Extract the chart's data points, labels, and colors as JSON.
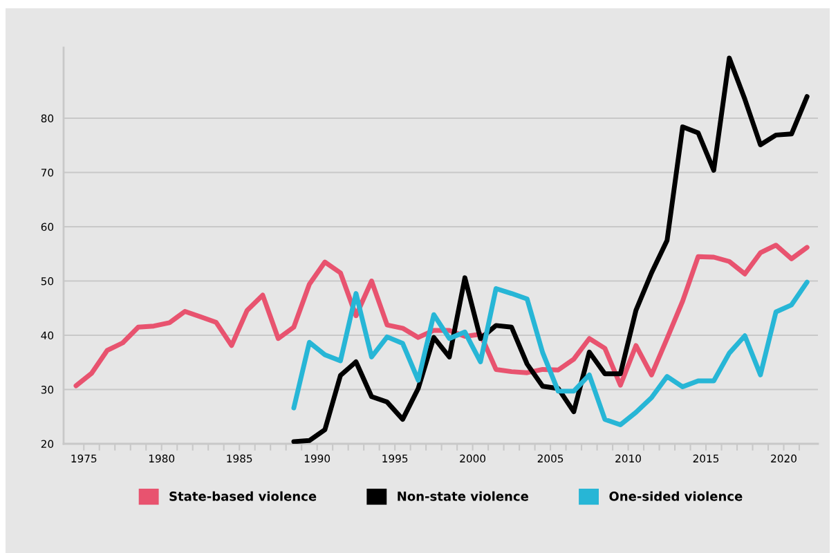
{
  "chart_data": {
    "type": "line",
    "xlim": [
      1973.7,
      2022.2
    ],
    "xticks": [
      {
        "value": 1975,
        "label": "1975"
      },
      {
        "value": 1976,
        "label": null
      },
      {
        "value": 1977,
        "label": null
      },
      {
        "value": 1978,
        "label": null
      },
      {
        "value": 1979,
        "label": null
      },
      {
        "value": 1980,
        "label": "1980"
      },
      {
        "value": 1981,
        "label": null
      },
      {
        "value": 1982,
        "label": null
      },
      {
        "value": 1983,
        "label": null
      },
      {
        "value": 1984,
        "label": null
      },
      {
        "value": 1985,
        "label": "1985"
      },
      {
        "value": 1986,
        "label": null
      },
      {
        "value": 1987,
        "label": null
      },
      {
        "value": 1988,
        "label": null
      },
      {
        "value": 1989,
        "label": null
      },
      {
        "value": 1990,
        "label": "1990"
      },
      {
        "value": 1991,
        "label": null
      },
      {
        "value": 1992,
        "label": null
      },
      {
        "value": 1993,
        "label": null
      },
      {
        "value": 1994,
        "label": null
      },
      {
        "value": 1995,
        "label": "1995"
      },
      {
        "value": 1996,
        "label": null
      },
      {
        "value": 1997,
        "label": null
      },
      {
        "value": 1998,
        "label": null
      },
      {
        "value": 1999,
        "label": null
      },
      {
        "value": 2000,
        "label": "2000"
      },
      {
        "value": 2001,
        "label": null
      },
      {
        "value": 2002,
        "label": null
      },
      {
        "value": 2003,
        "label": null
      },
      {
        "value": 2004,
        "label": null
      },
      {
        "value": 2005,
        "label": "2005"
      },
      {
        "value": 2006,
        "label": null
      },
      {
        "value": 2007,
        "label": null
      },
      {
        "value": 2008,
        "label": null
      },
      {
        "value": 2009,
        "label": null
      },
      {
        "value": 2010,
        "label": "2010"
      },
      {
        "value": 2011,
        "label": null
      },
      {
        "value": 2012,
        "label": null
      },
      {
        "value": 2013,
        "label": null
      },
      {
        "value": 2014,
        "label": null
      },
      {
        "value": 2015,
        "label": "2015"
      },
      {
        "value": 2016,
        "label": null
      },
      {
        "value": 2017,
        "label": null
      },
      {
        "value": 2018,
        "label": null
      },
      {
        "value": 2019,
        "label": null
      },
      {
        "value": 2020,
        "label": "2020"
      },
      {
        "value": 2021,
        "label": null
      }
    ],
    "ylim": [
      20,
      93
    ],
    "yticks": [
      20,
      30,
      40,
      50,
      60,
      70,
      80
    ],
    "grid": "y",
    "legend": "bottom",
    "marker": "none",
    "line_style": "solid",
    "series": [
      {
        "name": "State-based violence",
        "color": "#e8536f",
        "x": [
          1974.5,
          1975.5,
          1976.5,
          1977.5,
          1978.5,
          1979.5,
          1980.5,
          1981.5,
          1982.5,
          1983.5,
          1984.5,
          1985.5,
          1986.5,
          1987.5,
          1988.5,
          1989.5,
          1990.5,
          1991.5,
          1992.5,
          1993.5,
          1994.5,
          1995.5,
          1996.5,
          1997.5,
          1998.5,
          1999.5,
          2000.5,
          2001.5,
          2002.5,
          2003.5,
          2004.5,
          2005.5,
          2006.5,
          2007.5,
          2008.5,
          2009.5,
          2010.5,
          2011.5,
          2012.5,
          2013.5,
          2014.5,
          2015.5,
          2016.5,
          2017.5,
          2018.5,
          2019.5,
          2020.5,
          2021.5
        ],
        "values": [
          30.7,
          33.0,
          37.2,
          38.6,
          41.5,
          41.7,
          42.3,
          44.4,
          43.4,
          42.4,
          38.1,
          44.6,
          47.4,
          39.4,
          41.5,
          49.4,
          53.5,
          51.5,
          43.6,
          50.0,
          41.9,
          41.3,
          39.6,
          40.9,
          40.9,
          39.8,
          40.2,
          33.7,
          33.3,
          33.1,
          33.7,
          33.6,
          35.6,
          39.4,
          37.6,
          30.8,
          38.1,
          32.7,
          39.4,
          46.3,
          54.5,
          54.4,
          53.6,
          51.3,
          55.2,
          56.6,
          54.1,
          56.2
        ]
      },
      {
        "name": "Non-state violence",
        "color": "#000000",
        "x": [
          1988.5,
          1989.5,
          1990.5,
          1991.5,
          1992.5,
          1993.5,
          1994.5,
          1995.5,
          1996.5,
          1997.5,
          1998.5,
          1999.5,
          2000.5,
          2001.5,
          2002.5,
          2003.5,
          2004.5,
          2005.5,
          2006.5,
          2007.5,
          2008.5,
          2009.5,
          2010.5,
          2011.5,
          2012.5,
          2013.5,
          2014.5,
          2015.5,
          2016.5,
          2017.5,
          2018.5,
          2019.5,
          2020.5,
          2021.5
        ],
        "values": [
          20.4,
          20.6,
          22.6,
          32.6,
          35.1,
          28.7,
          27.7,
          24.5,
          30.2,
          39.6,
          36.0,
          50.6,
          39.4,
          41.8,
          41.5,
          34.7,
          30.6,
          30.2,
          25.9,
          36.9,
          32.9,
          32.9,
          44.6,
          51.5,
          57.5,
          78.4,
          77.3,
          70.4,
          91.1,
          83.5,
          75.1,
          76.9,
          77.1,
          84.0
        ]
      },
      {
        "name": "One-sided violence",
        "color": "#27b6d6",
        "x": [
          1988.5,
          1989.5,
          1990.5,
          1991.5,
          1992.5,
          1993.5,
          1994.5,
          1995.5,
          1996.5,
          1997.5,
          1998.5,
          1999.5,
          2000.5,
          2001.5,
          2002.5,
          2003.5,
          2004.5,
          2005.5,
          2006.5,
          2007.5,
          2008.5,
          2009.5,
          2010.5,
          2011.5,
          2012.5,
          2013.5,
          2014.5,
          2015.5,
          2016.5,
          2017.5,
          2018.5,
          2019.5,
          2020.5,
          2021.5
        ],
        "values": [
          26.6,
          38.7,
          36.4,
          35.3,
          47.7,
          36.0,
          39.7,
          38.5,
          31.7,
          43.8,
          39.4,
          40.6,
          35.1,
          48.6,
          47.7,
          46.7,
          36.8,
          29.7,
          29.7,
          32.7,
          24.5,
          23.5,
          25.8,
          28.5,
          32.4,
          30.5,
          31.6,
          31.6,
          36.7,
          39.9,
          32.7,
          44.3,
          45.6,
          49.8
        ]
      }
    ]
  }
}
